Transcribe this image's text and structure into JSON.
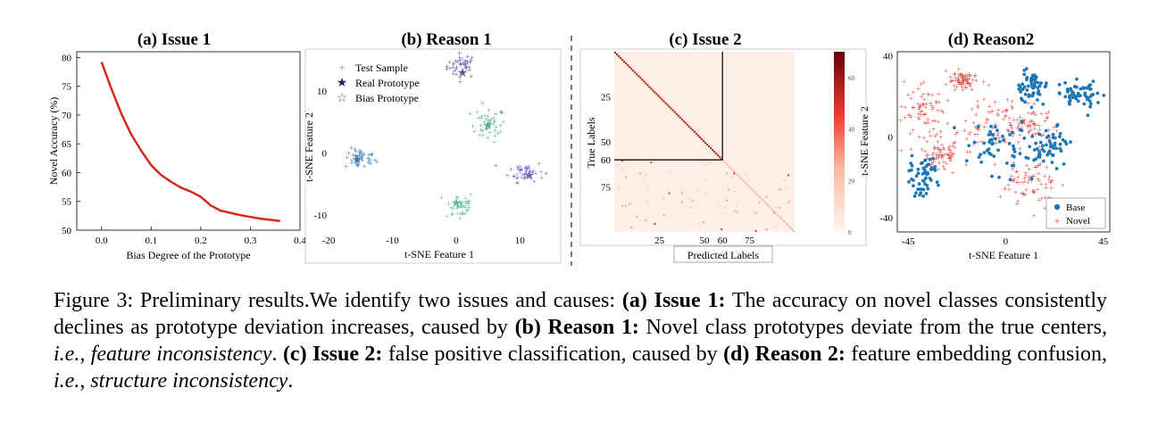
{
  "panels": {
    "a": {
      "title": "(a) Issue 1",
      "xlabel": "Bias Degree of the Prototype",
      "ylabel": "Novel Accuracy (%)"
    },
    "b": {
      "title": "(b) Reason 1",
      "xlabel": "t-SNE Feature 1",
      "ylabel": "t-SNE Feature 2",
      "legend": [
        "Test Sample",
        "Real Prototype",
        "Bias Prototype"
      ]
    },
    "c": {
      "title": "(c) Issue 2",
      "xlabel": "Predicted Labels",
      "ylabel": "True Labels"
    },
    "d": {
      "title": "(d) Reason2",
      "xlabel": "t-SNE Feature 1",
      "ylabel": "t-SNE Feature 2",
      "legend": [
        "Base",
        "Novel"
      ]
    }
  },
  "chart_data": [
    {
      "type": "line",
      "title": "(a) Issue 1",
      "xlabel": "Bias Degree of the Prototype",
      "ylabel": "Novel Accuracy (%)",
      "xlim": [
        -0.05,
        0.4
      ],
      "ylim": [
        50,
        81
      ],
      "xticks": [
        "0.0",
        "0.1",
        "0.2",
        "0.3",
        "0.4"
      ],
      "xtick_values": [
        0.0,
        0.1,
        0.2,
        0.3,
        0.4
      ],
      "yticks": [
        "50",
        "55",
        "60",
        "65",
        "70",
        "75",
        "80"
      ],
      "ytick_values": [
        50,
        55,
        60,
        65,
        70,
        75,
        80
      ],
      "series": [
        {
          "color": "#d42a1e",
          "x": [
            0.0,
            0.02,
            0.04,
            0.06,
            0.08,
            0.1,
            0.12,
            0.14,
            0.16,
            0.18,
            0.2,
            0.22,
            0.24,
            0.26,
            0.28,
            0.3,
            0.32,
            0.34,
            0.36
          ],
          "y": [
            79.2,
            74.5,
            70.2,
            66.6,
            63.8,
            61.3,
            59.6,
            58.4,
            57.4,
            56.7,
            55.8,
            54.3,
            53.4,
            53.0,
            52.6,
            52.3,
            52.0,
            51.8,
            51.6
          ]
        }
      ]
    },
    {
      "type": "scatter",
      "title": "(b) Reason 1",
      "xlabel": "t-SNE Feature 1",
      "ylabel": "t-SNE Feature 2",
      "xlim": [
        -20,
        15
      ],
      "ylim": [
        -12,
        16
      ],
      "xticks": [
        "-20",
        "-10",
        "0",
        "10"
      ],
      "xtick_values": [
        -20,
        -10,
        0,
        10
      ],
      "yticks": [
        "-10",
        "0",
        "10"
      ],
      "ytick_values": [
        -10,
        0,
        10
      ],
      "legend_position": "top-left",
      "clusters": [
        {
          "color": "#6b4fa0",
          "center": [
            1,
            14
          ],
          "spread": [
            2.2,
            1.8
          ],
          "real_prototype": [
            1,
            13
          ],
          "bias_prototype": [
            1,
            14.8
          ]
        },
        {
          "color": "#4fae8a",
          "center": [
            5,
            4.5
          ],
          "spread": [
            2.5,
            2.5
          ],
          "real_prototype": [
            5,
            4.5
          ],
          "bias_prototype": [
            5.6,
            5.1
          ]
        },
        {
          "color": "#3a7aa8",
          "center": [
            -15,
            -1
          ],
          "spread": [
            2.2,
            1.5
          ],
          "real_prototype": [
            -15.5,
            -1
          ],
          "bias_prototype": [
            -15,
            -0.5
          ]
        },
        {
          "color": "#5fb7a6",
          "center": [
            0.5,
            -8.5
          ],
          "spread": [
            2.2,
            2.2
          ],
          "real_prototype": [
            0,
            -8
          ],
          "bias_prototype": [
            0.5,
            -8.3
          ]
        },
        {
          "color": "#6a6abf",
          "center": [
            11,
            -3
          ],
          "spread": [
            2.5,
            1.5
          ],
          "real_prototype": [
            11.5,
            -3.5
          ],
          "bias_prototype": [
            10,
            -3.5
          ]
        }
      ]
    },
    {
      "type": "heatmap",
      "title": "(c) Issue 2",
      "xlabel": "Predicted Labels",
      "ylabel": "True Labels",
      "n_classes": 100,
      "base_classes": 60,
      "xticks": [
        "25",
        "50",
        "60",
        "75"
      ],
      "xtick_values": [
        25,
        50,
        60,
        75
      ],
      "yticks": [
        "25",
        "50",
        "60",
        "75"
      ],
      "ytick_values": [
        25,
        50,
        60,
        75
      ],
      "colorbar_ticks": [
        "60",
        "40",
        "20",
        "0"
      ],
      "colorbar_values": [
        60,
        40,
        20,
        0
      ],
      "colorbar_max": 70
    },
    {
      "type": "scatter",
      "title": "(d) Reason2",
      "xlabel": "t-SNE Feature 1",
      "ylabel": "t-SNE Feature 2",
      "xlim": [
        -50,
        48
      ],
      "ylim": [
        -47,
        42
      ],
      "xticks": [
        "-45",
        "0",
        "45"
      ],
      "xtick_values": [
        -45,
        0,
        45
      ],
      "yticks": [
        "-40",
        "0",
        "40"
      ],
      "ytick_values": [
        -40,
        0,
        40
      ],
      "legend_position": "bottom-right",
      "series": [
        {
          "name": "Base",
          "color": "#1f77b4",
          "marker": "dot"
        },
        {
          "name": "Novel",
          "color": "#e34a4a",
          "marker": "plus"
        }
      ]
    }
  ],
  "caption": {
    "parts": [
      {
        "t": "Figure 3: Preliminary results.We identify two issues and causes: ",
        "s": "n"
      },
      {
        "t": "(a) Issue 1:",
        "s": "b"
      },
      {
        "t": " The accuracy on novel classes consistently declines as prototype deviation increases, caused by ",
        "s": "n"
      },
      {
        "t": "(b) Reason 1:",
        "s": "b"
      },
      {
        "t": " Novel class prototypes deviate from the true centers, ",
        "s": "n"
      },
      {
        "t": "i.e.",
        "s": "i"
      },
      {
        "t": ", ",
        "s": "n"
      },
      {
        "t": "feature inconsistency",
        "s": "i"
      },
      {
        "t": ". ",
        "s": "n"
      },
      {
        "t": "(c) Issue 2:",
        "s": "b"
      },
      {
        "t": " false positive classification, caused by ",
        "s": "n"
      },
      {
        "t": "(d) Reason 2:",
        "s": "b"
      },
      {
        "t": " feature embedding confusion, ",
        "s": "n"
      },
      {
        "t": "i.e.",
        "s": "i"
      },
      {
        "t": ", ",
        "s": "n"
      },
      {
        "t": "structure inconsistency",
        "s": "i"
      },
      {
        "t": ".",
        "s": "n"
      }
    ]
  }
}
